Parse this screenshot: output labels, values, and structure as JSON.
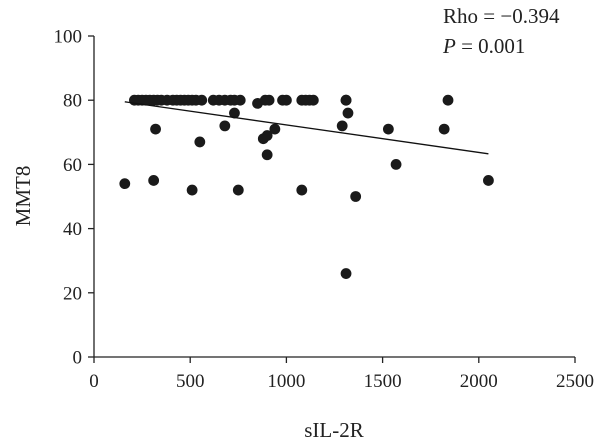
{
  "chart_data": {
    "type": "scatter",
    "title": "",
    "xlabel": "sIL-2R",
    "ylabel": "MMT8",
    "xlim": [
      0,
      2500
    ],
    "ylim": [
      0,
      100
    ],
    "xticks": [
      0,
      500,
      1000,
      1500,
      2000,
      2500
    ],
    "yticks": [
      0,
      20,
      40,
      60,
      80,
      100
    ],
    "grid": false,
    "legend": "none",
    "point_color": "#1a1a1a",
    "annotations": {
      "rho_text": "Rho = −0.394",
      "p_symbol": "P",
      "p_value_text": " = 0.001"
    },
    "trendline": {
      "x": [
        160,
        2050
      ],
      "y": [
        79.5,
        63.3
      ]
    },
    "points": {
      "x": [
        160,
        210,
        230,
        250,
        270,
        290,
        310,
        330,
        350,
        380,
        410,
        430,
        450,
        470,
        490,
        510,
        530,
        560,
        620,
        650,
        680,
        710,
        730,
        760,
        850,
        890,
        910,
        980,
        1000,
        1080,
        1100,
        1120,
        1140,
        1310,
        1310,
        1840,
        320,
        550,
        680,
        730,
        880,
        900,
        940,
        1290,
        1320,
        1530,
        1820,
        310,
        900,
        1570,
        510,
        750,
        1080,
        1360,
        2050,
        1310
      ],
      "y": [
        54,
        80,
        80,
        80,
        80,
        80,
        80,
        80,
        80,
        80,
        80,
        80,
        80,
        80,
        80,
        80,
        80,
        80,
        80,
        80,
        80,
        80,
        80,
        80,
        79,
        80,
        80,
        80,
        80,
        80,
        80,
        80,
        80,
        80,
        80,
        80,
        71,
        67,
        72,
        76,
        68,
        69,
        71,
        72,
        76,
        71,
        71,
        55,
        63,
        60,
        52,
        52,
        52,
        50,
        55,
        26
      ]
    }
  }
}
